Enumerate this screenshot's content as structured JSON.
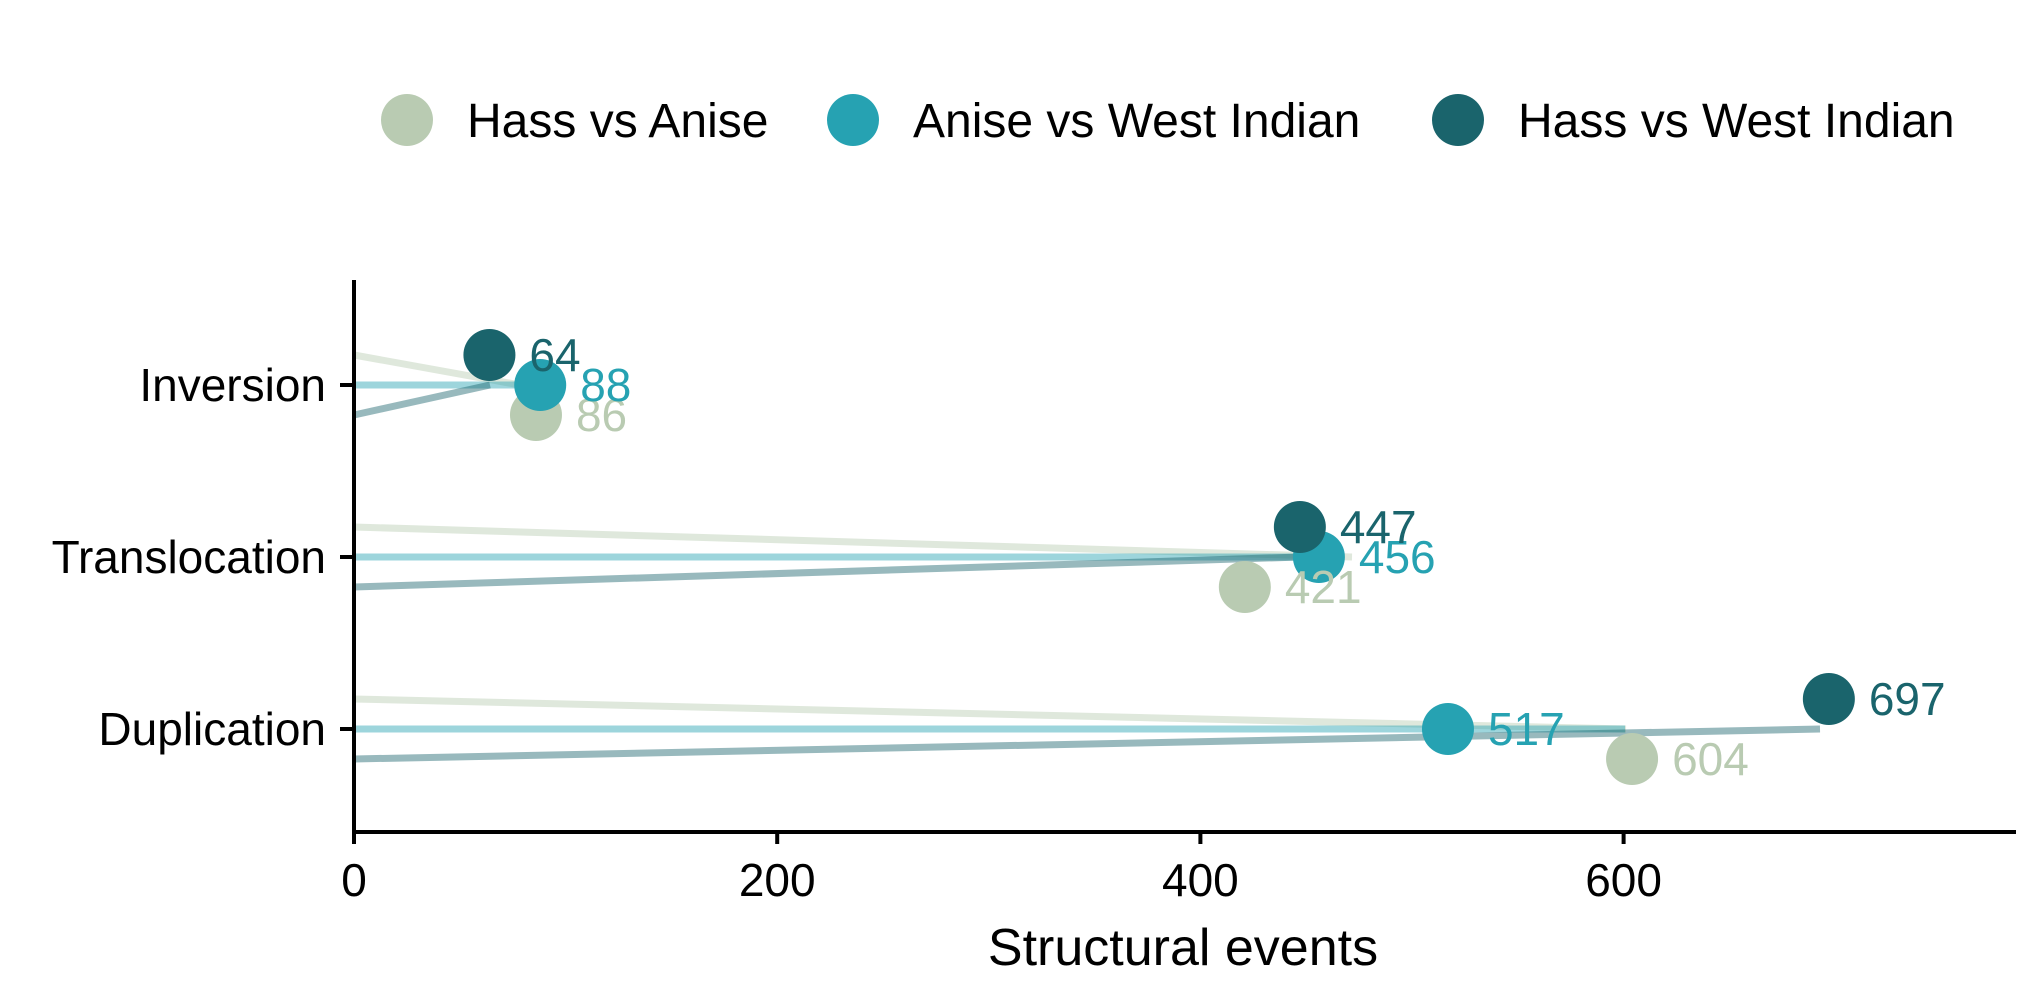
{
  "chart_data": {
    "type": "lollipop",
    "title": "",
    "xlabel": "Structural events",
    "ylabel": "",
    "xlim": [
      0,
      790
    ],
    "x_ticks": [
      0,
      200,
      400,
      600
    ],
    "categories": [
      "Inversion",
      "Translocation",
      "Duplication"
    ],
    "legend_position": "top",
    "grid": false,
    "series": [
      {
        "name": "Hass vs Anise",
        "color": "#b9cbb2",
        "values": [
          86,
          421,
          604
        ]
      },
      {
        "name": "Anise vs West Indian",
        "color": "#26a2b2",
        "values": [
          88,
          456,
          517
        ]
      },
      {
        "name": "Hass vs West Indian",
        "color": "#1a646c",
        "values": [
          64,
          447,
          697
        ]
      }
    ]
  }
}
